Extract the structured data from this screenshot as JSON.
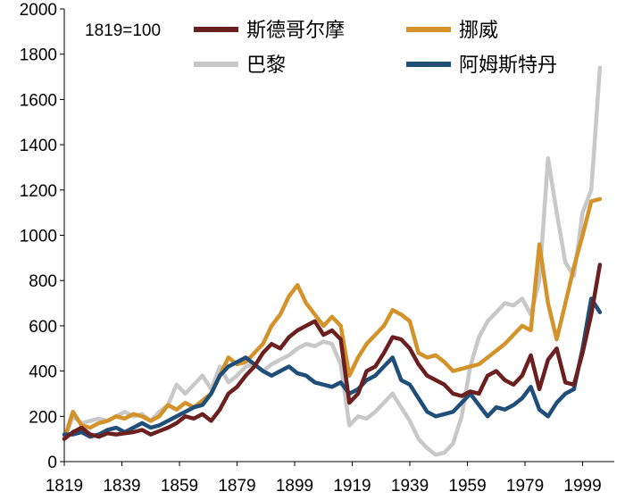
{
  "chart_data": {
    "type": "line",
    "annotation": "1819=100",
    "xlabel": "",
    "ylabel": "",
    "xlim": [
      1819,
      2010
    ],
    "ylim": [
      0,
      2000
    ],
    "x_ticks": [
      1819,
      1839,
      1859,
      1879,
      1899,
      1919,
      1939,
      1959,
      1979,
      1999
    ],
    "y_ticks": [
      0,
      200,
      400,
      600,
      800,
      1000,
      1200,
      1400,
      1600,
      1800,
      2000
    ],
    "series": [
      {
        "name": "斯德哥尔摩",
        "color": "#6b1f1f",
        "points": [
          [
            1819,
            100
          ],
          [
            1822,
            130
          ],
          [
            1825,
            150
          ],
          [
            1828,
            120
          ],
          [
            1831,
            110
          ],
          [
            1834,
            125
          ],
          [
            1837,
            120
          ],
          [
            1840,
            125
          ],
          [
            1843,
            130
          ],
          [
            1846,
            140
          ],
          [
            1849,
            120
          ],
          [
            1852,
            135
          ],
          [
            1855,
            150
          ],
          [
            1858,
            170
          ],
          [
            1861,
            200
          ],
          [
            1864,
            190
          ],
          [
            1867,
            210
          ],
          [
            1870,
            180
          ],
          [
            1873,
            230
          ],
          [
            1876,
            300
          ],
          [
            1879,
            330
          ],
          [
            1882,
            380
          ],
          [
            1885,
            420
          ],
          [
            1888,
            480
          ],
          [
            1891,
            520
          ],
          [
            1894,
            500
          ],
          [
            1897,
            550
          ],
          [
            1900,
            580
          ],
          [
            1903,
            600
          ],
          [
            1906,
            620
          ],
          [
            1909,
            560
          ],
          [
            1912,
            580
          ],
          [
            1915,
            540
          ],
          [
            1918,
            260
          ],
          [
            1921,
            300
          ],
          [
            1924,
            400
          ],
          [
            1927,
            420
          ],
          [
            1930,
            480
          ],
          [
            1933,
            550
          ],
          [
            1936,
            540
          ],
          [
            1939,
            500
          ],
          [
            1942,
            430
          ],
          [
            1945,
            380
          ],
          [
            1948,
            360
          ],
          [
            1951,
            340
          ],
          [
            1954,
            300
          ],
          [
            1957,
            290
          ],
          [
            1960,
            310
          ],
          [
            1963,
            300
          ],
          [
            1966,
            380
          ],
          [
            1969,
            400
          ],
          [
            1972,
            360
          ],
          [
            1975,
            340
          ],
          [
            1978,
            380
          ],
          [
            1981,
            470
          ],
          [
            1984,
            320
          ],
          [
            1987,
            450
          ],
          [
            1990,
            500
          ],
          [
            1993,
            350
          ],
          [
            1996,
            340
          ],
          [
            1999,
            480
          ],
          [
            2002,
            650
          ],
          [
            2005,
            870
          ]
        ]
      },
      {
        "name": "挪威",
        "color": "#d4922a",
        "points": [
          [
            1819,
            100
          ],
          [
            1822,
            220
          ],
          [
            1825,
            160
          ],
          [
            1828,
            150
          ],
          [
            1831,
            170
          ],
          [
            1834,
            180
          ],
          [
            1837,
            200
          ],
          [
            1840,
            190
          ],
          [
            1843,
            210
          ],
          [
            1846,
            200
          ],
          [
            1849,
            180
          ],
          [
            1852,
            200
          ],
          [
            1855,
            250
          ],
          [
            1858,
            230
          ],
          [
            1861,
            260
          ],
          [
            1864,
            240
          ],
          [
            1867,
            270
          ],
          [
            1870,
            300
          ],
          [
            1873,
            380
          ],
          [
            1876,
            460
          ],
          [
            1879,
            430
          ],
          [
            1882,
            440
          ],
          [
            1885,
            480
          ],
          [
            1888,
            520
          ],
          [
            1891,
            600
          ],
          [
            1894,
            650
          ],
          [
            1897,
            730
          ],
          [
            1900,
            780
          ],
          [
            1903,
            700
          ],
          [
            1906,
            650
          ],
          [
            1909,
            600
          ],
          [
            1912,
            640
          ],
          [
            1915,
            600
          ],
          [
            1918,
            380
          ],
          [
            1921,
            460
          ],
          [
            1924,
            520
          ],
          [
            1927,
            560
          ],
          [
            1930,
            600
          ],
          [
            1933,
            670
          ],
          [
            1936,
            650
          ],
          [
            1939,
            620
          ],
          [
            1942,
            480
          ],
          [
            1945,
            460
          ],
          [
            1948,
            470
          ],
          [
            1951,
            440
          ],
          [
            1954,
            400
          ],
          [
            1957,
            410
          ],
          [
            1960,
            420
          ],
          [
            1963,
            430
          ],
          [
            1966,
            460
          ],
          [
            1969,
            490
          ],
          [
            1972,
            520
          ],
          [
            1975,
            560
          ],
          [
            1978,
            600
          ],
          [
            1981,
            580
          ],
          [
            1984,
            960
          ],
          [
            1987,
            700
          ],
          [
            1990,
            540
          ],
          [
            1993,
            700
          ],
          [
            1996,
            860
          ],
          [
            1999,
            1000
          ],
          [
            2002,
            1150
          ],
          [
            2005,
            1160
          ]
        ]
      },
      {
        "name": "巴黎",
        "color": "#c8c8c8",
        "points": [
          [
            1819,
            100
          ],
          [
            1822,
            200
          ],
          [
            1825,
            170
          ],
          [
            1828,
            180
          ],
          [
            1831,
            190
          ],
          [
            1834,
            180
          ],
          [
            1837,
            200
          ],
          [
            1840,
            220
          ],
          [
            1843,
            200
          ],
          [
            1846,
            210
          ],
          [
            1849,
            180
          ],
          [
            1852,
            220
          ],
          [
            1855,
            250
          ],
          [
            1858,
            340
          ],
          [
            1861,
            300
          ],
          [
            1864,
            340
          ],
          [
            1867,
            380
          ],
          [
            1870,
            320
          ],
          [
            1873,
            420
          ],
          [
            1876,
            350
          ],
          [
            1879,
            380
          ],
          [
            1882,
            420
          ],
          [
            1885,
            430
          ],
          [
            1888,
            400
          ],
          [
            1891,
            430
          ],
          [
            1894,
            450
          ],
          [
            1897,
            470
          ],
          [
            1900,
            500
          ],
          [
            1903,
            520
          ],
          [
            1906,
            510
          ],
          [
            1909,
            530
          ],
          [
            1912,
            520
          ],
          [
            1915,
            430
          ],
          [
            1918,
            160
          ],
          [
            1921,
            200
          ],
          [
            1924,
            190
          ],
          [
            1927,
            220
          ],
          [
            1930,
            260
          ],
          [
            1933,
            300
          ],
          [
            1936,
            240
          ],
          [
            1939,
            180
          ],
          [
            1942,
            100
          ],
          [
            1945,
            60
          ],
          [
            1948,
            30
          ],
          [
            1951,
            40
          ],
          [
            1954,
            80
          ],
          [
            1957,
            200
          ],
          [
            1960,
            420
          ],
          [
            1963,
            550
          ],
          [
            1966,
            620
          ],
          [
            1969,
            660
          ],
          [
            1972,
            700
          ],
          [
            1975,
            690
          ],
          [
            1978,
            720
          ],
          [
            1981,
            650
          ],
          [
            1984,
            800
          ],
          [
            1987,
            1340
          ],
          [
            1990,
            1100
          ],
          [
            1993,
            880
          ],
          [
            1996,
            820
          ],
          [
            1999,
            1100
          ],
          [
            2002,
            1200
          ],
          [
            2005,
            1740
          ]
        ]
      },
      {
        "name": "阿姆斯特丹",
        "color": "#1f4e79",
        "points": [
          [
            1819,
            120
          ],
          [
            1822,
            120
          ],
          [
            1825,
            130
          ],
          [
            1828,
            110
          ],
          [
            1831,
            120
          ],
          [
            1834,
            140
          ],
          [
            1837,
            150
          ],
          [
            1840,
            130
          ],
          [
            1843,
            150
          ],
          [
            1846,
            170
          ],
          [
            1849,
            150
          ],
          [
            1852,
            160
          ],
          [
            1855,
            180
          ],
          [
            1858,
            200
          ],
          [
            1861,
            220
          ],
          [
            1864,
            240
          ],
          [
            1867,
            250
          ],
          [
            1870,
            300
          ],
          [
            1873,
            380
          ],
          [
            1876,
            420
          ],
          [
            1879,
            440
          ],
          [
            1882,
            460
          ],
          [
            1885,
            430
          ],
          [
            1888,
            400
          ],
          [
            1891,
            380
          ],
          [
            1894,
            400
          ],
          [
            1897,
            420
          ],
          [
            1900,
            390
          ],
          [
            1903,
            380
          ],
          [
            1906,
            350
          ],
          [
            1909,
            340
          ],
          [
            1912,
            330
          ],
          [
            1915,
            350
          ],
          [
            1918,
            300
          ],
          [
            1921,
            320
          ],
          [
            1924,
            360
          ],
          [
            1927,
            380
          ],
          [
            1930,
            420
          ],
          [
            1933,
            460
          ],
          [
            1936,
            360
          ],
          [
            1939,
            340
          ],
          [
            1942,
            280
          ],
          [
            1945,
            220
          ],
          [
            1948,
            200
          ],
          [
            1951,
            210
          ],
          [
            1954,
            220
          ],
          [
            1957,
            260
          ],
          [
            1960,
            300
          ],
          [
            1963,
            250
          ],
          [
            1966,
            200
          ],
          [
            1969,
            240
          ],
          [
            1972,
            230
          ],
          [
            1975,
            250
          ],
          [
            1978,
            280
          ],
          [
            1981,
            330
          ],
          [
            1984,
            230
          ],
          [
            1987,
            200
          ],
          [
            1990,
            260
          ],
          [
            1993,
            300
          ],
          [
            1996,
            320
          ],
          [
            1999,
            500
          ],
          [
            2002,
            720
          ],
          [
            2005,
            660
          ]
        ]
      }
    ]
  }
}
